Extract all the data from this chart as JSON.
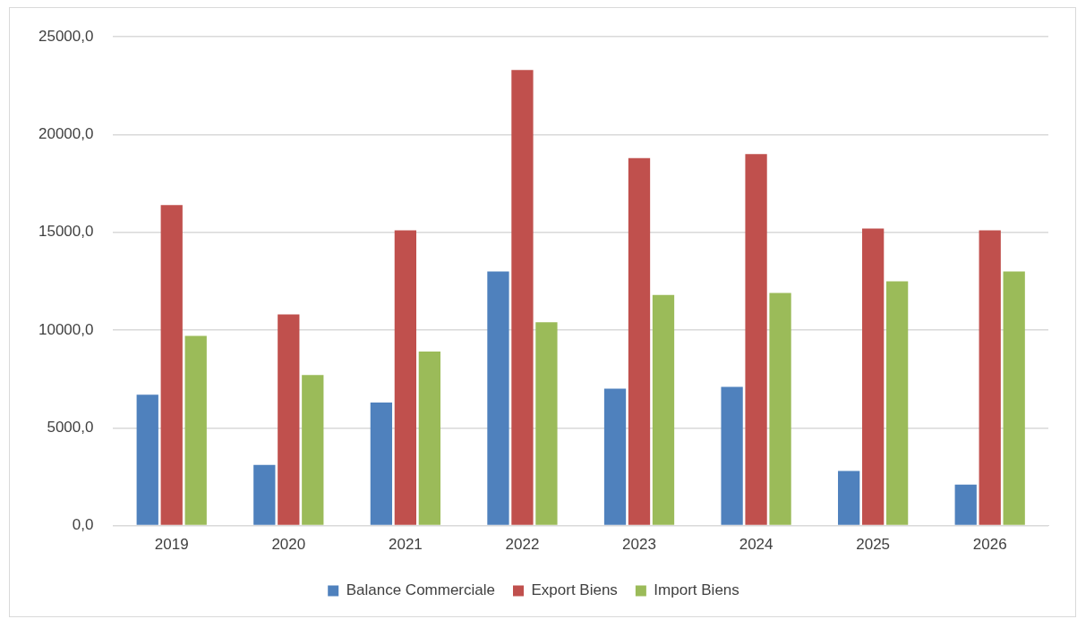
{
  "chart_data": {
    "type": "bar",
    "categories": [
      "2019",
      "2020",
      "2021",
      "2022",
      "2023",
      "2024",
      "2025",
      "2026"
    ],
    "series": [
      {
        "name": "Balance Commerciale",
        "color": "#4f81bd",
        "values": [
          6700,
          3100,
          6300,
          13000,
          7000,
          7100,
          2800,
          2100
        ]
      },
      {
        "name": "Export Biens",
        "color": "#c0504d",
        "values": [
          16400,
          10800,
          15100,
          23300,
          18800,
          19000,
          15200,
          15100
        ]
      },
      {
        "name": "Import Biens",
        "color": "#9bbb59",
        "values": [
          9700,
          7700,
          8900,
          10400,
          11800,
          11900,
          12500,
          13000
        ]
      }
    ],
    "ylim": [
      0,
      25000
    ],
    "yticks": [
      {
        "value": 0,
        "label": "0,0"
      },
      {
        "value": 5000,
        "label": "5000,0"
      },
      {
        "value": 10000,
        "label": "10000,0"
      },
      {
        "value": 15000,
        "label": "15000,0"
      },
      {
        "value": 20000,
        "label": "20000,0"
      },
      {
        "value": 25000,
        "label": "25000,0"
      }
    ],
    "grid": "y",
    "legend": "bottom"
  }
}
